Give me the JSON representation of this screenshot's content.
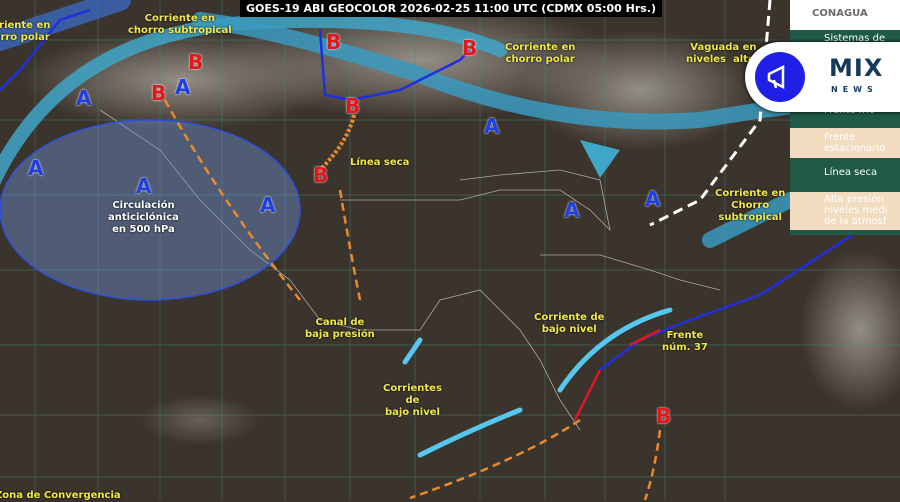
{
  "title": "GOES-19 ABI GEOCOLOR 2026-02-25 11:00 UTC (CDMX  05:00 Hrs.)",
  "labels": {
    "jet_subtropical_nw": "Corriente en\nchorro subtropical",
    "jet_polar_nw": "Corriente en\nchorro polar",
    "jet_polar_ne": "Corriente en\nchorro polar",
    "trough": "Vaguada en\nniveles  altos",
    "dry_line": "Línea seca",
    "anticyclone": "Circulación\nanticiclónica\nen 500 hPa",
    "low_channel": "Canal de\nbaja presión",
    "low_level_currents": "Corrientes\nde\nbajo nivel",
    "low_level_current": "Corriente de\nbajo nivel",
    "front": "Frente\nnúm. 37",
    "subtropical_jet_e": "Corriente en\nChorro\nsubtropical",
    "convergence": "Zona de Convergencia"
  },
  "pressure_systems": {
    "high": "A",
    "low": "B"
  },
  "legend": {
    "logo": "CONAGUA",
    "items": [
      "Sistemas de",
      "Frente frío",
      "Frente\nestacionario",
      "Línea seca",
      "Alta presión\nniveles medi\nde la atmosf"
    ],
    "high_symbol": "A"
  },
  "badge": {
    "name": "MIX",
    "sub": "NEWS",
    "icon": "megaphone-icon"
  },
  "colors": {
    "high": "#1f3fe0",
    "low": "#e3161b",
    "jet": "#3fa6c8",
    "dry_line": "#e88a2e",
    "label": "#f0e84a",
    "legend_bg": "#1f5a48"
  }
}
